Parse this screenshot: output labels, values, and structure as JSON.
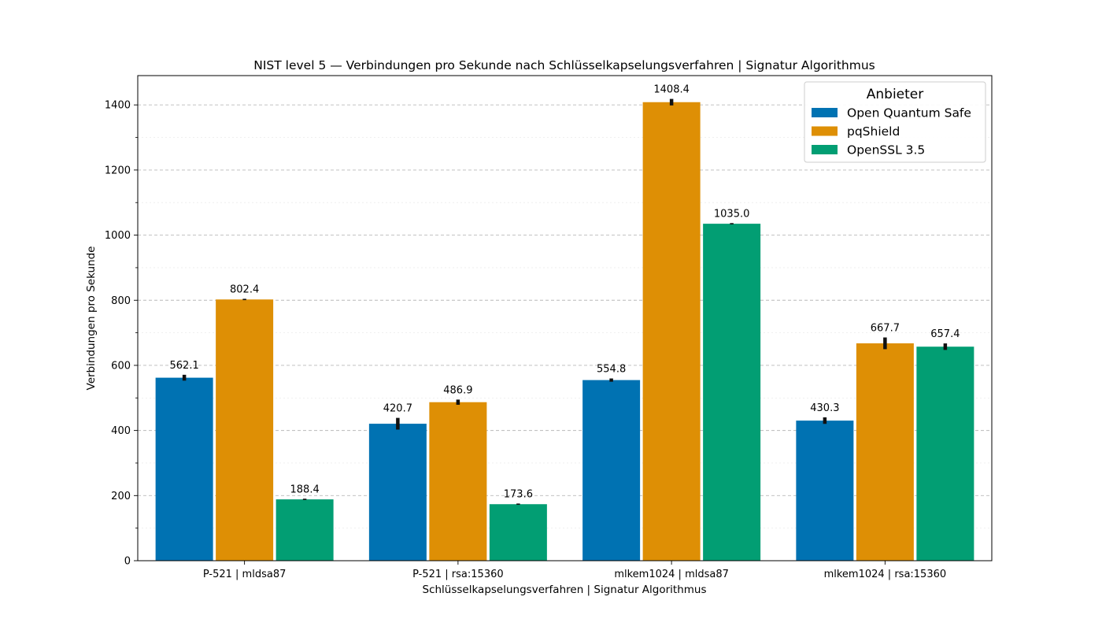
{
  "chart_data": {
    "type": "bar",
    "title": "NIST level 5 — Verbindungen pro Sekunde nach Schlüsselkapselungsverfahren | Signatur Algorithmus",
    "xlabel": "Schlüsselkapselungsverfahren | Signatur Algorithmus",
    "ylabel": "Verbindungen pro Sekunde",
    "ylim": [
      0,
      1490
    ],
    "yticks": [
      0,
      200,
      400,
      600,
      800,
      1000,
      1200,
      1400
    ],
    "ytick_labels": [
      "0",
      "200",
      "400",
      "600",
      "800",
      "1000",
      "1200",
      "1400"
    ],
    "grid": true,
    "legend": {
      "title": "Anbieter",
      "placement": "top-right"
    },
    "categories": [
      "P-521 | mldsa87",
      "P-521 | rsa:15360",
      "mlkem1024 | mldsa87",
      "mlkem1024 | rsa:15360"
    ],
    "series": [
      {
        "name": "Open Quantum Safe",
        "color": "#0072b2",
        "values": [
          562.1,
          420.7,
          554.8,
          430.3
        ],
        "labels": [
          "562.1",
          "420.7",
          "554.8",
          "430.3"
        ],
        "errors": [
          9,
          18,
          5,
          10
        ]
      },
      {
        "name": "pqShield",
        "color": "#de8f05",
        "values": [
          802.4,
          486.9,
          1408.4,
          667.7
        ],
        "labels": [
          "802.4",
          "486.9",
          "1408.4",
          "667.7"
        ],
        "errors": [
          2,
          8,
          10,
          18
        ]
      },
      {
        "name": "OpenSSL 3.5",
        "color": "#029e73",
        "values": [
          188.4,
          173.6,
          1035.0,
          657.4
        ],
        "labels": [
          "188.4",
          "173.6",
          "1035.0",
          "657.4"
        ],
        "errors": [
          2,
          2,
          2,
          10
        ]
      }
    ]
  }
}
